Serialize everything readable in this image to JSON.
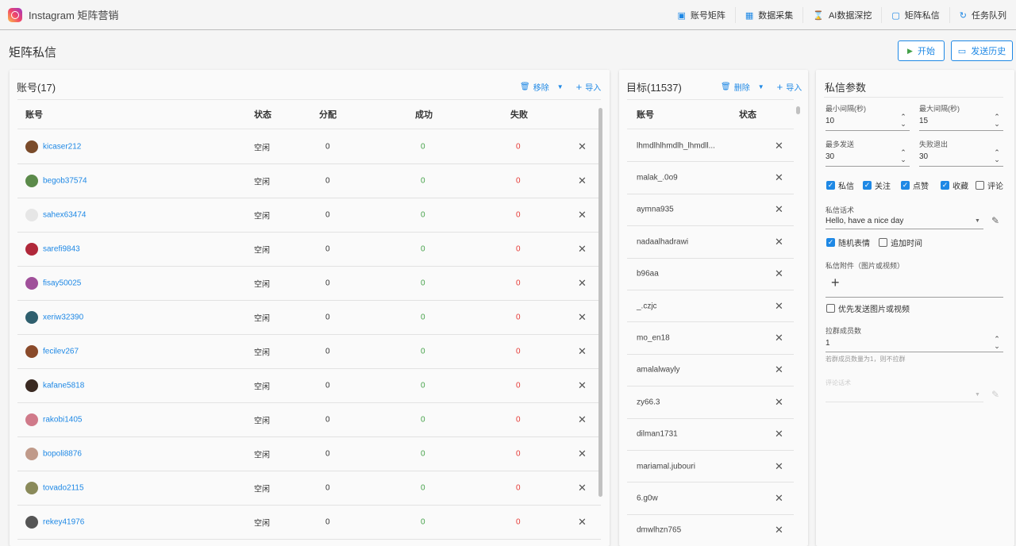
{
  "app": {
    "title": "Instagram 矩阵营销"
  },
  "nav": [
    {
      "label": "账号矩阵",
      "icon": "account-matrix-icon",
      "glyph": "▣"
    },
    {
      "label": "数据采集",
      "icon": "data-collect-icon",
      "glyph": "▦"
    },
    {
      "label": "AI数据深挖",
      "icon": "hourglass-icon",
      "glyph": "⌛"
    },
    {
      "label": "矩阵私信",
      "icon": "message-icon",
      "glyph": "▢"
    },
    {
      "label": "任务队列",
      "icon": "sync-icon",
      "glyph": "↻"
    }
  ],
  "page": {
    "title": "矩阵私信",
    "start_label": "开始",
    "history_label": "发送历史"
  },
  "accounts": {
    "title": "账号(17)",
    "remove_label": "移除",
    "import_label": "导入",
    "columns": [
      "账号",
      "状态",
      "分配",
      "成功",
      "失败"
    ],
    "rows": [
      {
        "name": "kicaser212",
        "status": "空闲",
        "assigned": "0",
        "success": "0",
        "fail": "0",
        "color": "#7a4b2a"
      },
      {
        "name": "begob37574",
        "status": "空闲",
        "assigned": "0",
        "success": "0",
        "fail": "0",
        "color": "#5b8a4a"
      },
      {
        "name": "sahex63474",
        "status": "空闲",
        "assigned": "0",
        "success": "0",
        "fail": "0",
        "color": "#e6e6e6"
      },
      {
        "name": "sarefi9843",
        "status": "空闲",
        "assigned": "0",
        "success": "0",
        "fail": "0",
        "color": "#b0283a"
      },
      {
        "name": "fisay50025",
        "status": "空闲",
        "assigned": "0",
        "success": "0",
        "fail": "0",
        "color": "#a0509a"
      },
      {
        "name": "xeriw32390",
        "status": "空闲",
        "assigned": "0",
        "success": "0",
        "fail": "0",
        "color": "#2f5f6e"
      },
      {
        "name": "fecilev267",
        "status": "空闲",
        "assigned": "0",
        "success": "0",
        "fail": "0",
        "color": "#8a4a2a"
      },
      {
        "name": "kafane5818",
        "status": "空闲",
        "assigned": "0",
        "success": "0",
        "fail": "0",
        "color": "#3a2a22"
      },
      {
        "name": "rakobi1405",
        "status": "空闲",
        "assigned": "0",
        "success": "0",
        "fail": "0",
        "color": "#d07a8a"
      },
      {
        "name": "bopoli8876",
        "status": "空闲",
        "assigned": "0",
        "success": "0",
        "fail": "0",
        "color": "#c09a8a"
      },
      {
        "name": "tovado2115",
        "status": "空闲",
        "assigned": "0",
        "success": "0",
        "fail": "0",
        "color": "#8a8a5a"
      },
      {
        "name": "rekey41976",
        "status": "空闲",
        "assigned": "0",
        "success": "0",
        "fail": "0",
        "color": "#555555"
      }
    ]
  },
  "targets": {
    "title": "目标(11537)",
    "delete_label": "删除",
    "import_label": "导入",
    "columns": [
      "账号",
      "状态"
    ],
    "rows": [
      "lhmdlhlhmdlh_lhmdll...",
      "malak_.0o9",
      "aymna935",
      "nadaalhadrawi",
      "b96aa",
      "_.czjc",
      "mo_en18",
      "amalalwayly",
      "zy66.3",
      "dilman1731",
      "mariamal.jubouri",
      "6.g0w",
      "dmwlhzn765"
    ]
  },
  "params": {
    "title": "私信参数",
    "min_interval_label": "最小间隔(秒)",
    "min_interval": "10",
    "max_interval_label": "最大间隔(秒)",
    "max_interval": "15",
    "max_send_label": "最多发送",
    "max_send": "30",
    "fail_exit_label": "失败退出",
    "fail_exit": "30",
    "actions": [
      {
        "label": "私信",
        "checked": true
      },
      {
        "label": "关注",
        "checked": true
      },
      {
        "label": "点赞",
        "checked": true
      },
      {
        "label": "收藏",
        "checked": true
      },
      {
        "label": "评论",
        "checked": false
      }
    ],
    "script_label": "私信话术",
    "script_value": "Hello, have a nice day",
    "random_emoji_label": "随机表情",
    "random_emoji": true,
    "append_time_label": "追加时间",
    "append_time": false,
    "attachment_label": "私信附件（图片或视频）",
    "prefer_media_label": "优先发送图片或视频",
    "prefer_media": false,
    "group_members_label": "拉群成员数",
    "group_members": "1",
    "group_hint": "若群成员数量为1，则不拉群",
    "comment_script_label": "评论话术"
  },
  "colors": {
    "accent": "#1e88e5",
    "success": "#43a047",
    "fail": "#e53935"
  }
}
